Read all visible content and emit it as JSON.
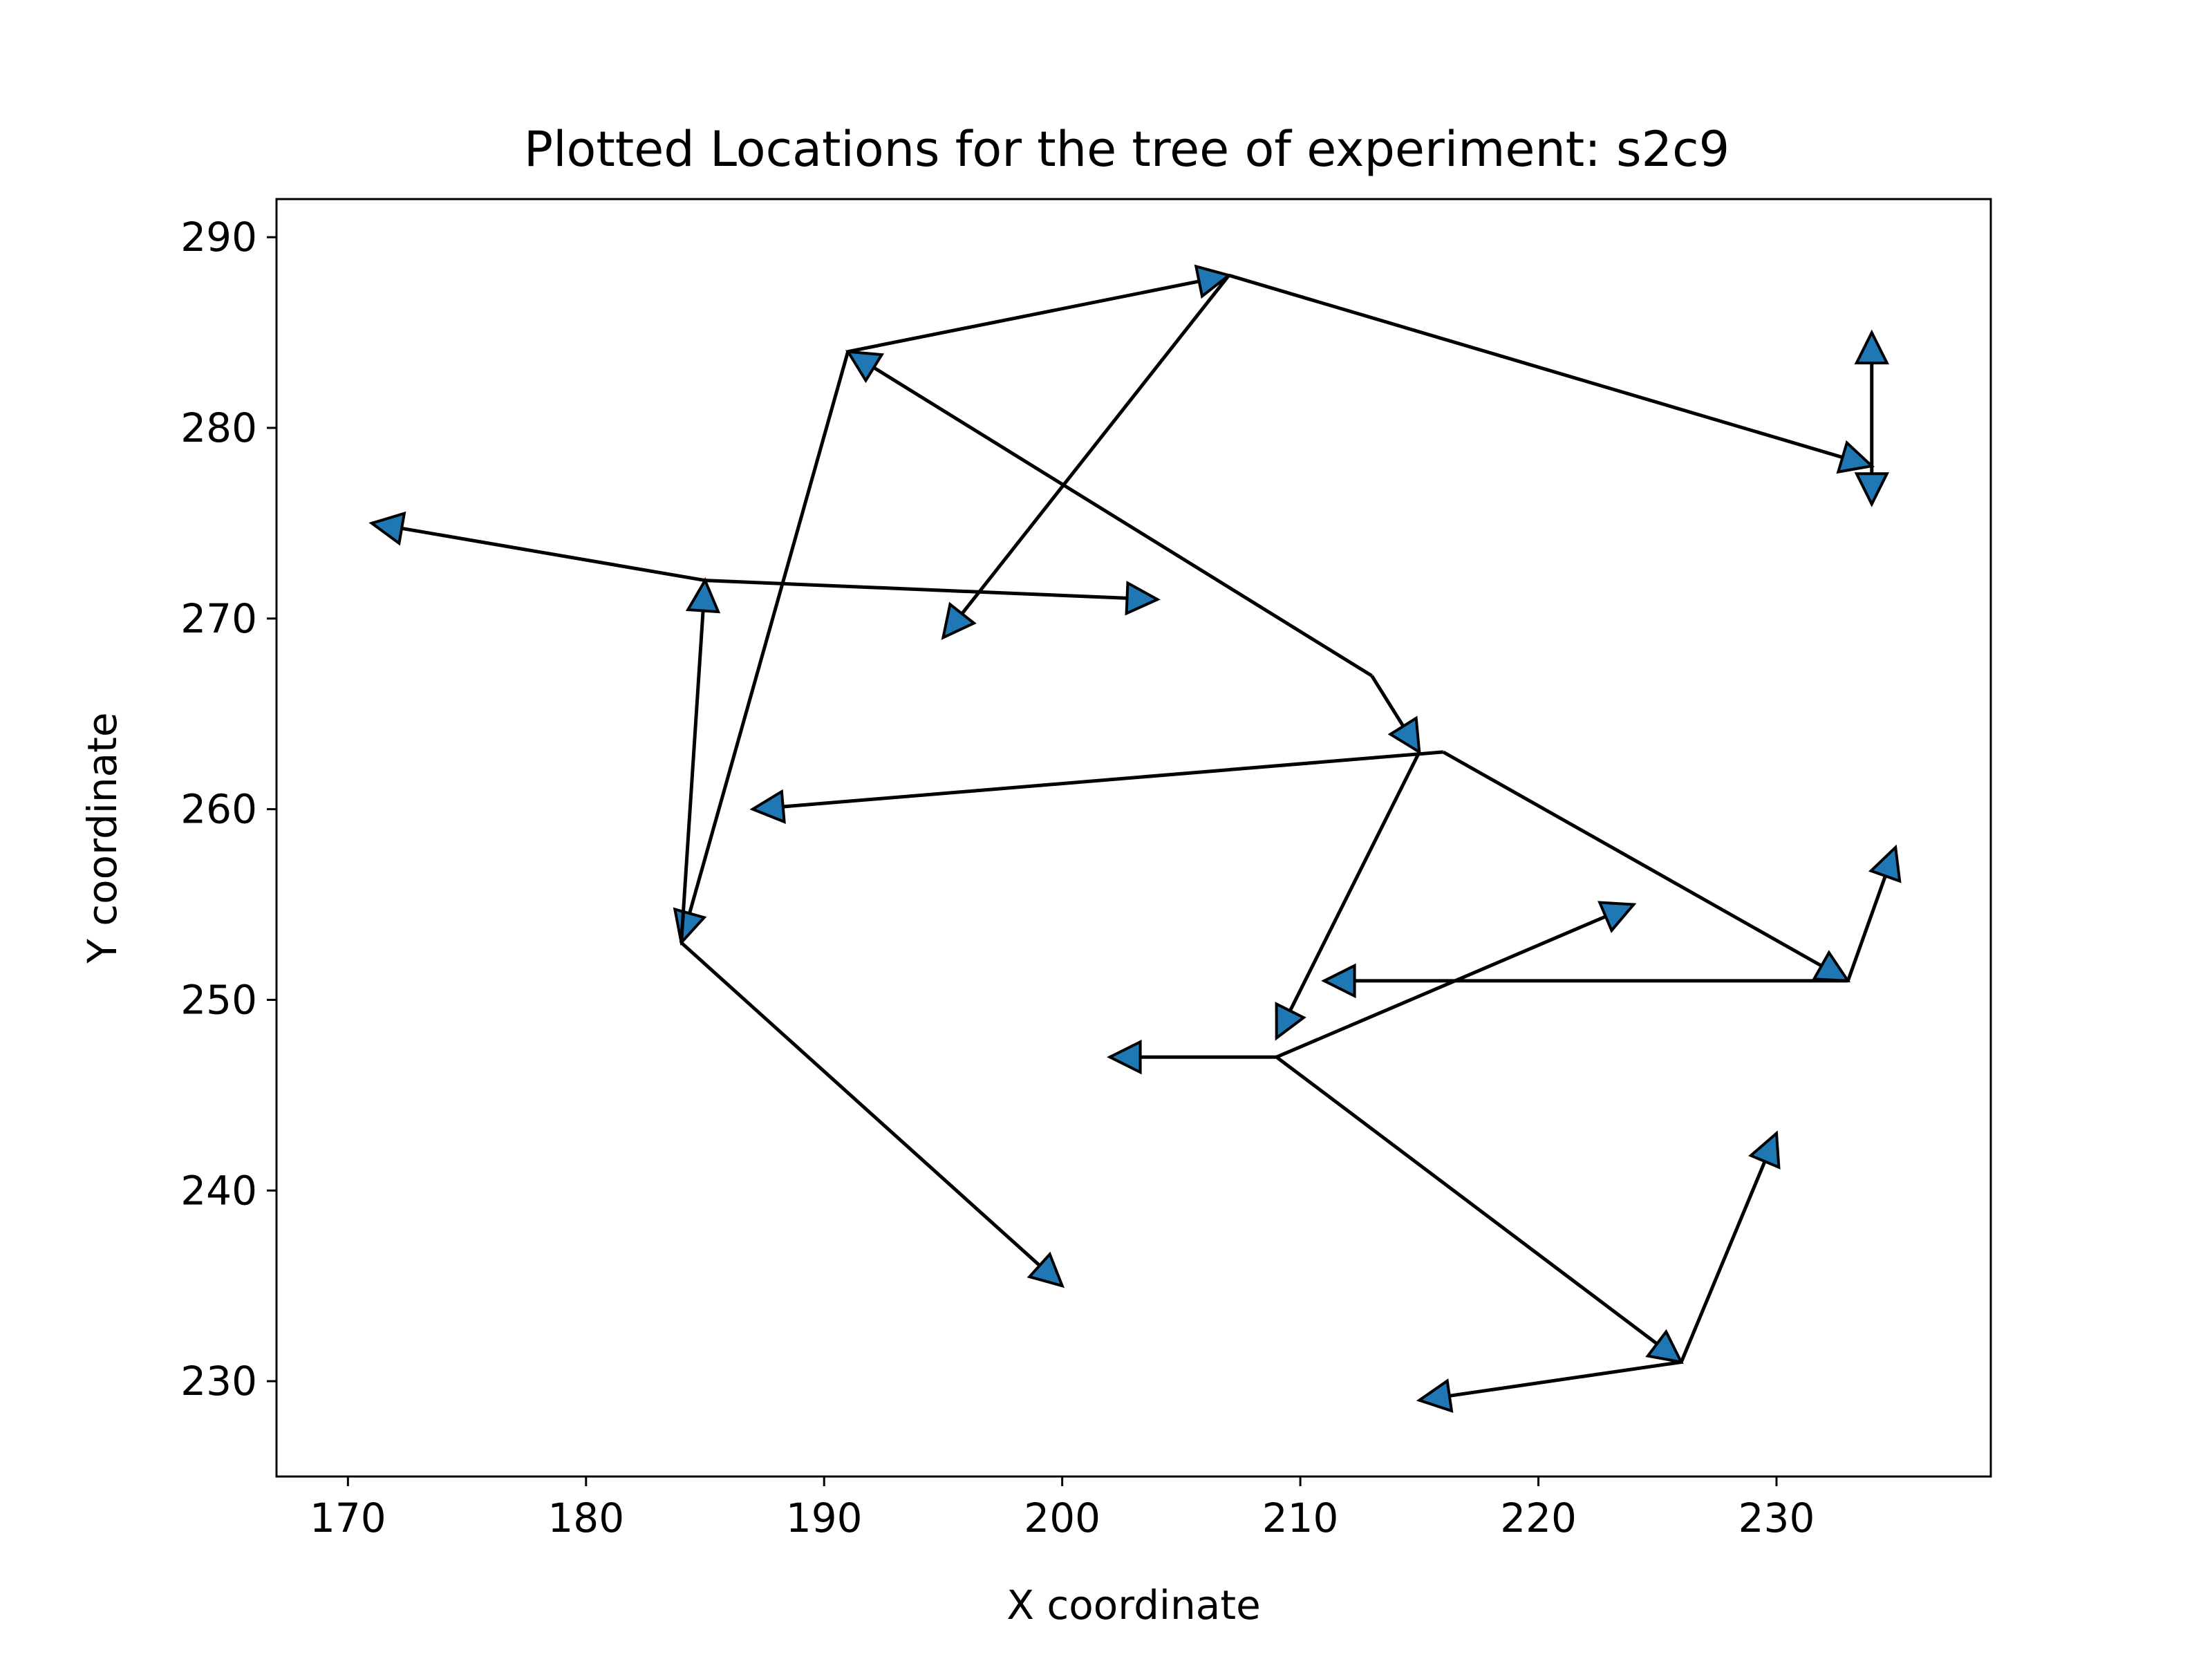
{
  "chart_data": {
    "type": "scatter",
    "title": "Plotted Locations for the tree of experiment: s2c9",
    "xlabel": "X coordinate",
    "ylabel": "Y coordinate",
    "xlim": [
      167,
      239
    ],
    "ylim": [
      225,
      292
    ],
    "xticks": [
      170,
      180,
      190,
      200,
      210,
      220,
      230
    ],
    "yticks": [
      230,
      240,
      250,
      260,
      270,
      280,
      290
    ],
    "grid": false,
    "marker_color": "#1f77b4",
    "line_color": "#000000",
    "segments": [
      {
        "from": [
          213,
          267
        ],
        "to": [
          215,
          263
        ]
      },
      {
        "from": [
          215,
          263
        ],
        "to": [
          209,
          248
        ]
      },
      {
        "from": [
          209,
          247
        ],
        "to": [
          224,
          255
        ]
      },
      {
        "from": [
          209,
          247
        ],
        "to": [
          202,
          247
        ]
      },
      {
        "from": [
          209,
          247
        ],
        "to": [
          226,
          231
        ]
      },
      {
        "from": [
          226,
          231
        ],
        "to": [
          230,
          243
        ]
      },
      {
        "from": [
          226,
          231
        ],
        "to": [
          215,
          229
        ]
      },
      {
        "from": [
          213,
          267
        ],
        "to": [
          191,
          284
        ]
      },
      {
        "from": [
          191,
          284
        ],
        "to": [
          207,
          288
        ]
      },
      {
        "from": [
          207,
          288
        ],
        "to": [
          234,
          278
        ]
      },
      {
        "from": [
          234,
          278
        ],
        "to": [
          234,
          285
        ]
      },
      {
        "from": [
          234,
          278
        ],
        "to": [
          234,
          276
        ]
      },
      {
        "from": [
          207,
          288
        ],
        "to": [
          195,
          269
        ]
      },
      {
        "from": [
          191,
          284
        ],
        "to": [
          184,
          253
        ]
      },
      {
        "from": [
          184,
          253
        ],
        "to": [
          185,
          272
        ]
      },
      {
        "from": [
          185,
          272
        ],
        "to": [
          171,
          275
        ]
      },
      {
        "from": [
          185,
          272
        ],
        "to": [
          204,
          271
        ]
      },
      {
        "from": [
          184,
          253
        ],
        "to": [
          200,
          235
        ]
      },
      {
        "from": [
          216,
          263
        ],
        "to": [
          187,
          260
        ]
      },
      {
        "from": [
          216,
          263
        ],
        "to": [
          233,
          251
        ]
      },
      {
        "from": [
          233,
          251
        ],
        "to": [
          235,
          258
        ]
      },
      {
        "from": [
          233,
          251
        ],
        "to": [
          211,
          251
        ]
      }
    ]
  }
}
